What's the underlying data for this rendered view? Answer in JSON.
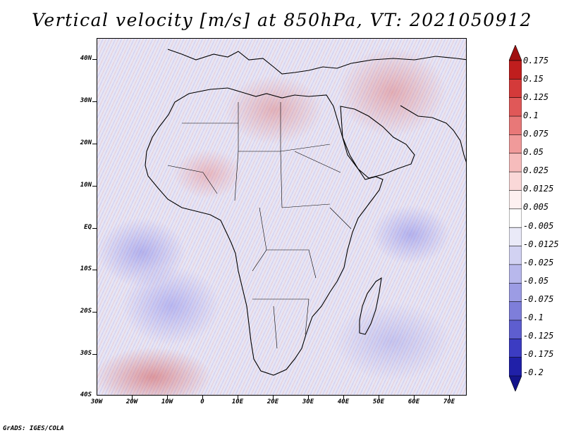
{
  "title": "Vertical velocity [m/s] at 850hPa, VT: 2021050912",
  "footer": "GrADS: IGES/COLA",
  "map": {
    "projection": "lat-lon",
    "variable": "Vertical velocity [m/s] at 850hPa",
    "lon_range": [
      -30,
      75
    ],
    "lat_range": [
      -40,
      45
    ]
  },
  "latitude_labels": [
    "40N",
    "30N",
    "20N",
    "10N",
    "EQ",
    "10S",
    "20S",
    "30S",
    "40S"
  ],
  "latitude_values": [
    40,
    30,
    20,
    10,
    0,
    -10,
    -20,
    -30,
    -40
  ],
  "longitude_labels": [
    "30W",
    "20W",
    "10W",
    "0",
    "10E",
    "20E",
    "30E",
    "40E",
    "50E",
    "60E",
    "70E"
  ],
  "longitude_values": [
    -30,
    -20,
    -10,
    0,
    10,
    20,
    30,
    40,
    50,
    60,
    70
  ],
  "colorbar": {
    "labels": [
      "0.175",
      "0.15",
      "0.125",
      "0.1",
      "0.075",
      "0.05",
      "0.025",
      "0.0125",
      "0.005",
      "-0.005",
      "-0.0125",
      "-0.025",
      "-0.05",
      "-0.075",
      "-0.1",
      "-0.125",
      "-0.175",
      "-0.2"
    ],
    "colors": [
      "#a01010",
      "#c01e1e",
      "#d43a3a",
      "#e05858",
      "#e87878",
      "#f09a9a",
      "#f6bcbc",
      "#fad8d8",
      "#fdf0f0",
      "#ffffff",
      "#eaeaf8",
      "#d2d2f2",
      "#b8b8ec",
      "#9c9ce4",
      "#7e7eda",
      "#5e5ecf",
      "#3c3cc2",
      "#2020a8",
      "#14148c"
    ]
  }
}
